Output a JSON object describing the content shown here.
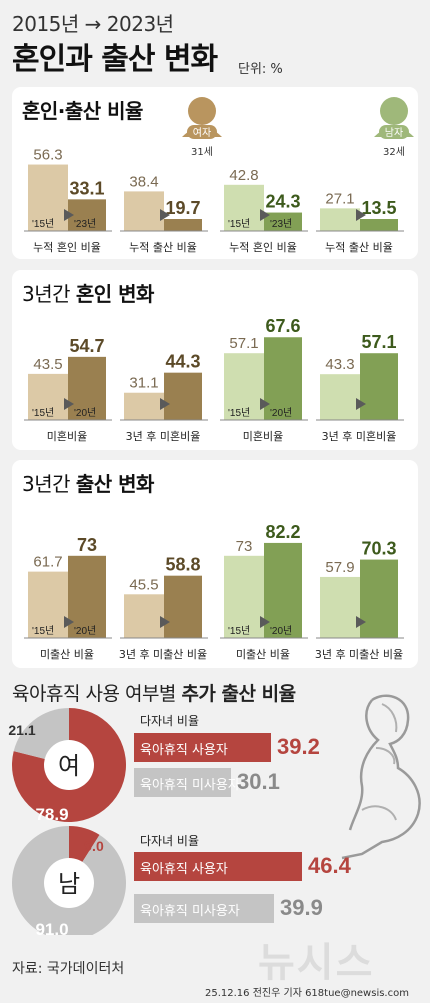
{
  "header": {
    "small_title": "2015년 → 2023년",
    "main_title": "혼인과 출산 변화",
    "unit": "단위: %"
  },
  "panels": [
    {
      "title_plain": "",
      "title_bold": "혼인·출산 비율"
    },
    {
      "title_plain": "3년간 ",
      "title_bold": "혼인 변화"
    },
    {
      "title_plain": "3년간 ",
      "title_bold": "출산 변화"
    }
  ],
  "avatars": {
    "female_label": "여자",
    "female_age": "31세",
    "male_label": "남자",
    "male_age": "32세"
  },
  "colors": {
    "female_light": "#dcc9a6",
    "female_dark": "#9a8050",
    "male_light": "#cfdeb0",
    "male_dark": "#82a055",
    "leave_red": "#b5453f",
    "leave_gray": "#c4c4c4"
  },
  "chart_data": [
    {
      "type": "bar",
      "title": "혼인·출산 비율",
      "groups": [
        {
          "gender": "여자",
          "label": "누적 혼인 비율",
          "values": [
            56.3,
            33.1
          ],
          "years": [
            "'15년",
            "'23년"
          ]
        },
        {
          "gender": "여자",
          "label": "누적 출산 비율",
          "values": [
            38.4,
            19.7
          ],
          "years": [
            "",
            ""
          ]
        },
        {
          "gender": "남자",
          "label": "누적 혼인 비율",
          "values": [
            42.8,
            24.3
          ],
          "years": [
            "'15년",
            "'23년"
          ]
        },
        {
          "gender": "남자",
          "label": "누적 출산 비율",
          "values": [
            27.1,
            13.5
          ],
          "years": [
            "",
            ""
          ]
        }
      ]
    },
    {
      "type": "bar",
      "title": "3년간 혼인 변화",
      "groups": [
        {
          "gender": "여자",
          "label": "미혼비율",
          "values": [
            43.5,
            54.7
          ],
          "years": [
            "'15년",
            "'20년"
          ]
        },
        {
          "gender": "여자",
          "label": "3년 후 미혼비율",
          "values": [
            31.1,
            44.3
          ],
          "years": [
            "",
            ""
          ]
        },
        {
          "gender": "남자",
          "label": "미혼비율",
          "values": [
            57.1,
            67.6
          ],
          "years": [
            "'15년",
            "'20년"
          ]
        },
        {
          "gender": "남자",
          "label": "3년 후 미혼비율",
          "values": [
            43.3,
            57.1
          ],
          "years": [
            "",
            ""
          ]
        }
      ]
    },
    {
      "type": "bar",
      "title": "3년간 출산 변화",
      "groups": [
        {
          "gender": "여자",
          "label": "미출산 비율",
          "values": [
            61.7,
            73
          ],
          "years": [
            "'15년",
            "'20년"
          ]
        },
        {
          "gender": "여자",
          "label": "3년 후 미출산 비율",
          "values": [
            45.5,
            58.8
          ],
          "years": [
            "",
            ""
          ]
        },
        {
          "gender": "남자",
          "label": "미출산 비율",
          "values": [
            73,
            82.2
          ],
          "years": [
            "'15년",
            "'20년"
          ]
        },
        {
          "gender": "남자",
          "label": "3년 후 미출산 비율",
          "values": [
            57.9,
            70.3
          ],
          "years": [
            "",
            ""
          ]
        }
      ]
    },
    {
      "type": "pie",
      "title": "육아휴직 사용 여부별 추가 출산 비율",
      "center_label": "여",
      "slices": [
        {
          "label": "사용",
          "value": 78.9
        },
        {
          "label": "미사용",
          "value": 21.1
        }
      ]
    },
    {
      "type": "pie",
      "center_label": "남",
      "slices": [
        {
          "label": "사용",
          "value": 9.0
        },
        {
          "label": "미사용",
          "value": 91.0
        }
      ]
    },
    {
      "type": "bar",
      "subtitle": "다자녀 비율",
      "categories": [
        "육아휴직 사용자",
        "육아휴직 미사용자"
      ],
      "values": [
        39.2,
        30.1
      ]
    },
    {
      "type": "bar",
      "subtitle": "다자녀 비율",
      "categories": [
        "육아휴직 사용자",
        "육아휴직 미사용자"
      ],
      "values": [
        46.4,
        39.9
      ]
    }
  ],
  "leave": {
    "title_plain": "육아휴직 사용 여부별 ",
    "title_bold": "추가 출산 비율",
    "female_pie_labels": [
      "21.1",
      "78.9"
    ],
    "male_pie_labels": [
      "9.0",
      "91.0"
    ]
  },
  "footer": {
    "source": "자료: 국가데이터처",
    "byline": "25.12.16 전진우 기자 618tue@newsis.com",
    "logo": "뉴시스"
  }
}
